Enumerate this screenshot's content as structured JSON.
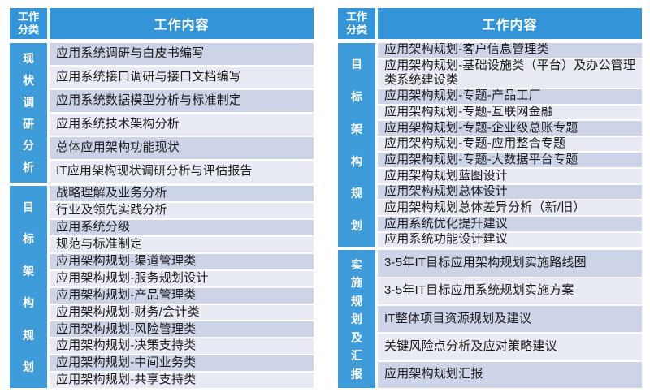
{
  "colors": {
    "header_bg": "#3394d8",
    "category_bg": "#3e9cdb",
    "row_dark": "#cdd4e8",
    "row_light": "#e9ebf4",
    "text": "#1b1b1b"
  },
  "tables": [
    {
      "header": {
        "category": "工作分类",
        "content": "工作内容"
      },
      "groups": [
        {
          "category": "现状调研分析",
          "rows": [
            "应用系统调研与白皮书编写",
            "应用系统接口调研与接口文档编写",
            "应用系统数据模型分析与标准制定",
            "应用系统技术架构分析",
            "总体应用架构功能现状",
            "IT应用架构现状调研分析与评估报告"
          ]
        },
        {
          "category": "目标架构规划",
          "rows": [
            "战略理解及业务分析",
            "行业及领先实践分析",
            "应用系统分级",
            "规范与标准制定",
            "应用架构规划-渠道管理类",
            "应用架构规划-服务规划设计",
            "应用架构规划-产品管理类",
            "应用架构规划-财务/会计类",
            "应用架构规划-风险管理类",
            "应用架构规划-决策支持类",
            "应用架构规划-中间业务类",
            "应用架构规划-共享支持类"
          ]
        }
      ]
    },
    {
      "header": {
        "category": "工作分类",
        "content": "工作内容"
      },
      "groups": [
        {
          "category": "目标架构规划",
          "tall_rows": [
            1
          ],
          "rows": [
            "应用架构规划-客户信息管理类",
            "应用架构规划-基础设施类（平台）及办公管理类系统建设类",
            "应用架构规划-专题-产品工厂",
            "应用架构规划-专题-互联网金融",
            "应用架构规划-专题-企业级总账专题",
            "应用架构规划-专题-应用整合专题",
            "应用架构规划-专题-大数据平台专题",
            "应用架构规划蓝图设计",
            "应用架构规划总体设计",
            "应用架构规划总体差异分析（新/旧）",
            "应用系统优化提升建议",
            "应用系统功能设计建议"
          ]
        },
        {
          "category": "实施规划及汇报",
          "rows": [
            "3-5年IT目标应用架构规划实施路线图",
            "3-5年IT目标应用系统规划实施方案",
            "IT整体项目资源规划及建议",
            "关键风险点分析及应对策略建议",
            "应用架构规划汇报"
          ]
        }
      ]
    }
  ]
}
